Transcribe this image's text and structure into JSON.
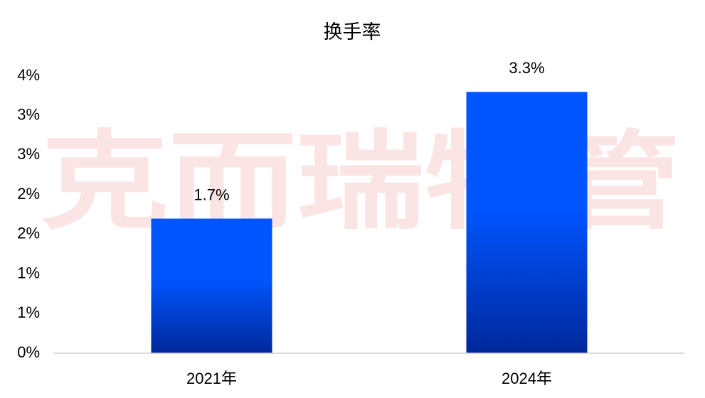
{
  "chart_data": {
    "type": "bar",
    "title": "换手率",
    "watermark": "克而瑞物管",
    "categories": [
      "2021年",
      "2024年"
    ],
    "values": [
      1.7,
      3.3
    ],
    "value_labels": [
      "1.7%",
      "3.3%"
    ],
    "color": "#0055ff",
    "ylim": [
      0,
      3.5
    ],
    "yticks": [
      {
        "value": 0,
        "label": "0%"
      },
      {
        "value": 0.5,
        "label": "1%"
      },
      {
        "value": 1,
        "label": "1%"
      },
      {
        "value": 1.5,
        "label": "2%"
      },
      {
        "value": 2,
        "label": "2%"
      },
      {
        "value": 2.5,
        "label": "3%"
      },
      {
        "value": 3,
        "label": "3%"
      },
      {
        "value": 3.5,
        "label": "4%"
      }
    ],
    "grid": false
  }
}
